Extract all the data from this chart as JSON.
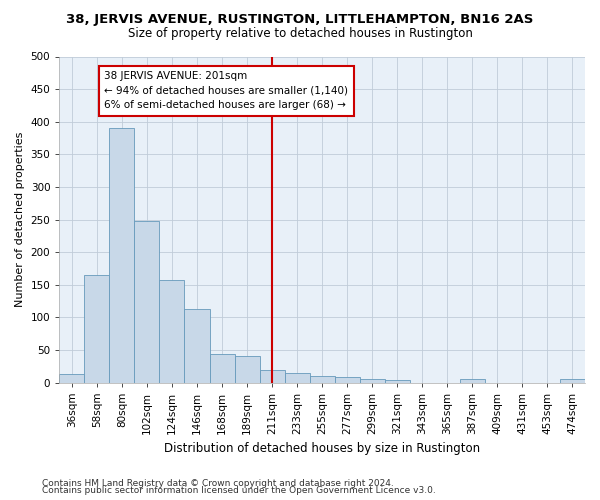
{
  "title": "38, JERVIS AVENUE, RUSTINGTON, LITTLEHAMPTON, BN16 2AS",
  "subtitle": "Size of property relative to detached houses in Rustington",
  "xlabel": "Distribution of detached houses by size in Rustington",
  "ylabel": "Number of detached properties",
  "footer1": "Contains HM Land Registry data © Crown copyright and database right 2024.",
  "footer2": "Contains public sector information licensed under the Open Government Licence v3.0.",
  "bar_labels": [
    "36sqm",
    "58sqm",
    "80sqm",
    "102sqm",
    "124sqm",
    "146sqm",
    "168sqm",
    "189sqm",
    "211sqm",
    "233sqm",
    "255sqm",
    "277sqm",
    "299sqm",
    "321sqm",
    "343sqm",
    "365sqm",
    "387sqm",
    "409sqm",
    "431sqm",
    "453sqm",
    "474sqm"
  ],
  "bar_values": [
    13,
    165,
    390,
    247,
    157,
    113,
    44,
    40,
    19,
    15,
    10,
    9,
    6,
    4,
    0,
    0,
    5,
    0,
    0,
    0,
    5
  ],
  "bar_color": "#c8d8e8",
  "bar_edge_color": "#6699bb",
  "vline_x": 8,
  "ylim": [
    0,
    500
  ],
  "yticks": [
    0,
    50,
    100,
    150,
    200,
    250,
    300,
    350,
    400,
    450,
    500
  ],
  "annotation_title": "38 JERVIS AVENUE: 201sqm",
  "annotation_line1": "← 94% of detached houses are smaller (1,140)",
  "annotation_line2": "6% of semi-detached houses are larger (68) →",
  "vline_color": "#cc0000",
  "annotation_box_color": "#ffffff",
  "annotation_box_edge": "#cc0000",
  "bg_color": "#ffffff",
  "plot_bg_color": "#e8f0f8",
  "grid_color": "#c0ccd8",
  "title_fontsize": 9.5,
  "subtitle_fontsize": 8.5,
  "ylabel_fontsize": 8,
  "xlabel_fontsize": 8.5,
  "tick_fontsize": 7.5,
  "footer_fontsize": 6.5
}
